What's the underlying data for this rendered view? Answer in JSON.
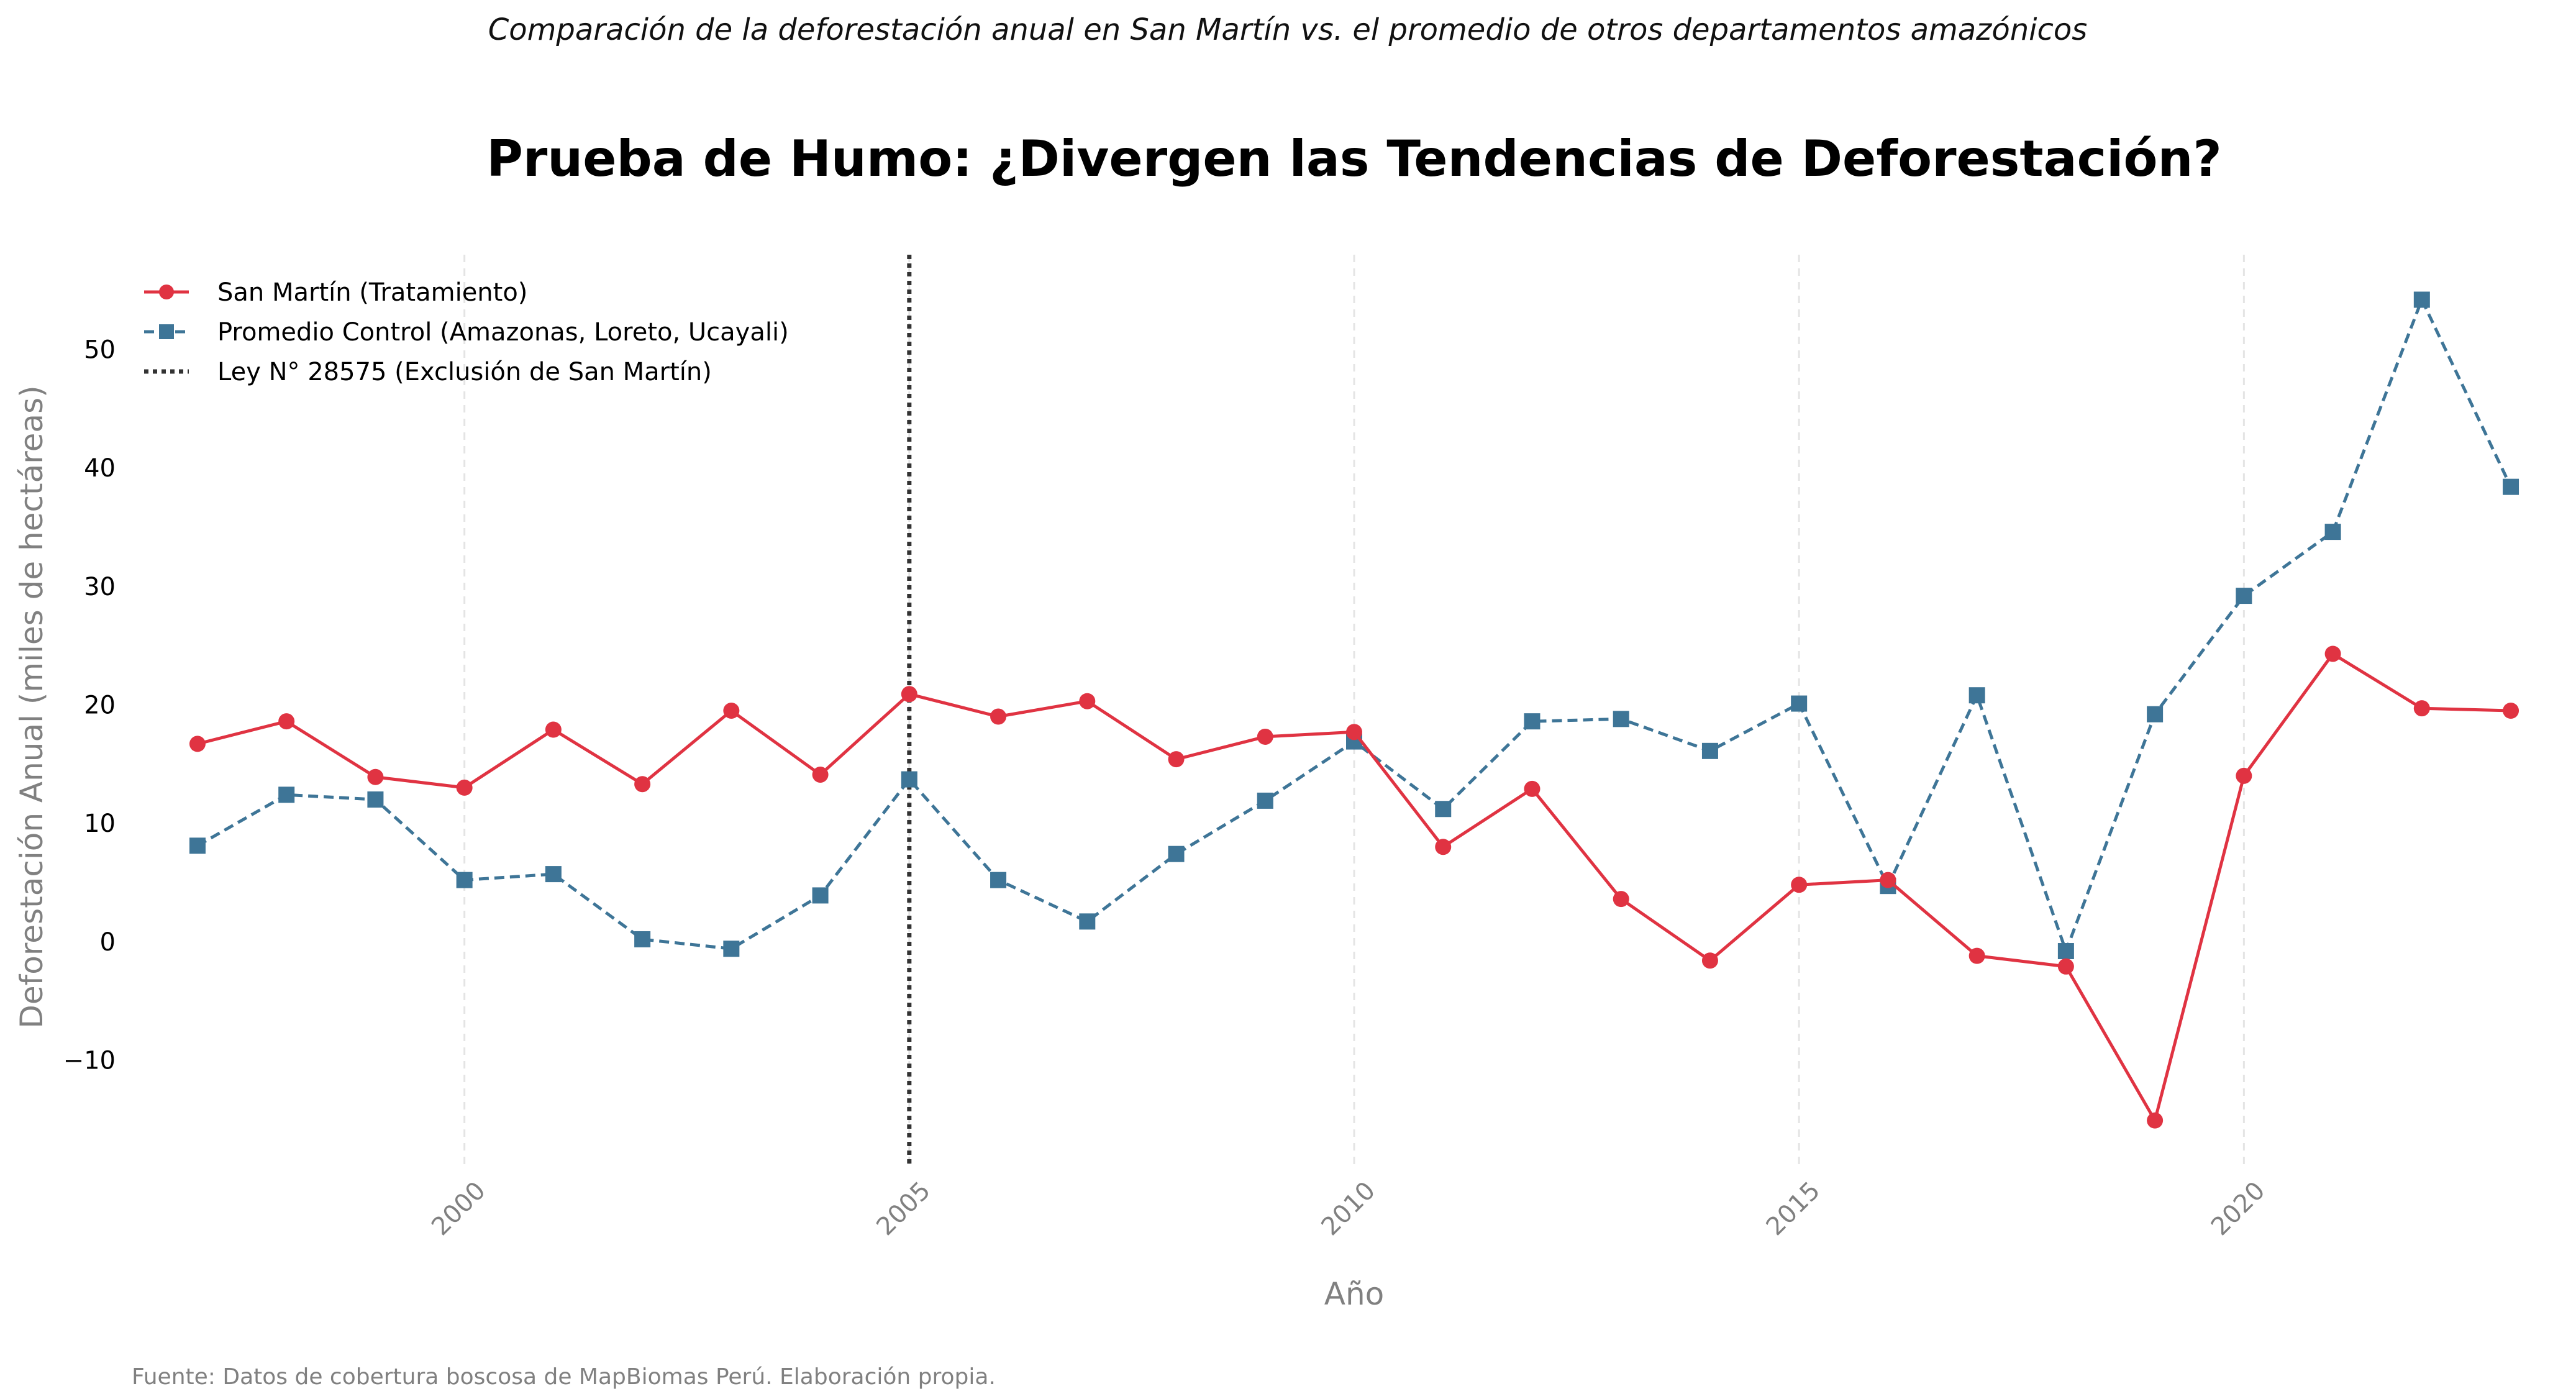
{
  "chart_data": {
    "type": "line",
    "subtitle": "Comparación de la deforestación anual en San Martín vs. el promedio de otros departamentos amazónicos",
    "title": "Prueba de Humo: ¿Divergen las Tendencias de Deforestación?",
    "xlabel": "Año",
    "ylabel": "Deforestación Anual (miles de hectáreas)",
    "source": "Fuente: Datos de cobertura boscosa de MapBiomas Perú. Elaboración propia.",
    "xlim": [
      1996.4,
      2023.6
    ],
    "ylim": [
      -19,
      58
    ],
    "xticks": [
      "2000",
      "2005",
      "2010",
      "2015",
      "2020"
    ],
    "yticks": [
      "−10",
      "0",
      "10",
      "20",
      "30",
      "40",
      "50"
    ],
    "legend_position": "top-left",
    "grid": "vertical dashed",
    "x": [
      1997,
      1998,
      1999,
      2000,
      2001,
      2002,
      2003,
      2004,
      2005,
      2006,
      2007,
      2008,
      2009,
      2010,
      2011,
      2012,
      2013,
      2014,
      2015,
      2016,
      2017,
      2018,
      2019,
      2020,
      2021,
      2022,
      2023
    ],
    "series": [
      {
        "name": "San Martín (Tratamiento)",
        "color": "#e03342",
        "style": "solid",
        "marker": "circle",
        "values": [
          16.7,
          18.6,
          13.9,
          13.0,
          17.9,
          13.3,
          19.5,
          14.1,
          20.9,
          19.0,
          20.3,
          15.4,
          17.3,
          17.7,
          8.0,
          12.9,
          3.6,
          -1.6,
          4.8,
          5.2,
          -1.2,
          -2.1,
          -15.1,
          14.0,
          24.3,
          19.7,
          19.5
        ]
      },
      {
        "name": "Promedio Control (Amazonas, Loreto, Ucayali)",
        "color": "#3e7597",
        "style": "dashed",
        "marker": "square",
        "values": [
          8.1,
          12.4,
          12.0,
          5.2,
          5.7,
          0.2,
          -0.6,
          3.9,
          13.7,
          5.2,
          1.7,
          7.4,
          11.9,
          16.9,
          11.2,
          18.6,
          18.8,
          16.1,
          20.1,
          4.7,
          20.8,
          -0.8,
          19.2,
          29.2,
          34.6,
          54.2,
          38.4
        ]
      }
    ],
    "vline": {
      "name": "Ley N° 28575 (Exclusión de San Martín)",
      "x": 2005,
      "color": "#333333",
      "style": "dotted"
    }
  }
}
